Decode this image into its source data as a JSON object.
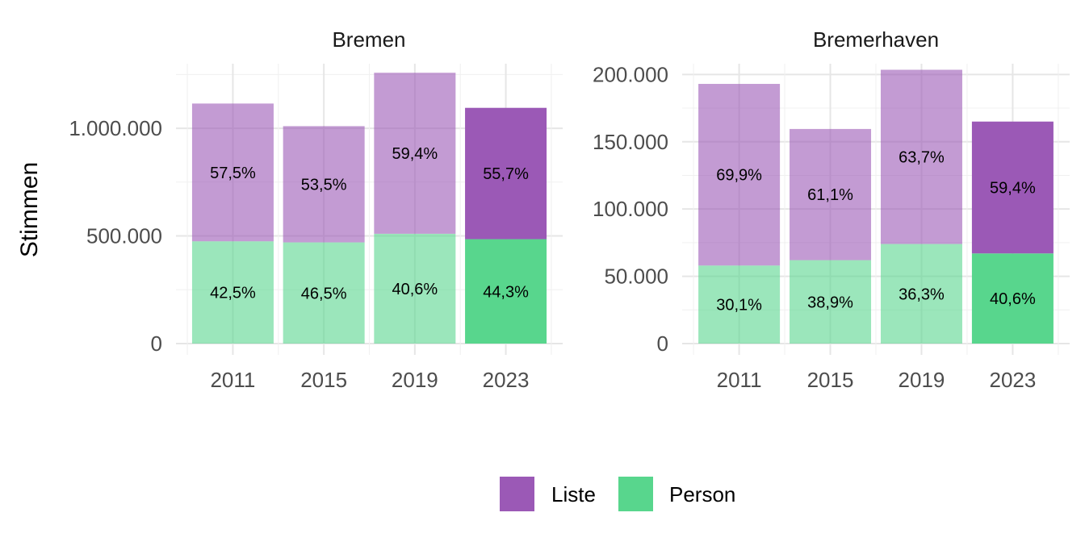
{
  "chart_data": {
    "type": "bar",
    "stacked": true,
    "ylabel": "Stimmen",
    "xlabel": "",
    "grid": true,
    "legend_position": "bottom",
    "categories": [
      "2011",
      "2015",
      "2019",
      "2023"
    ],
    "highlight_category": "2023",
    "legend": [
      {
        "name": "Liste",
        "color": "#9B59B6"
      },
      {
        "name": "Person",
        "color": "#58D68D"
      }
    ],
    "panels": [
      {
        "title": "Bremen",
        "ylim": [
          0,
          1300000
        ],
        "yticks": [
          0,
          500000,
          1000000
        ],
        "ytick_labels": [
          "0",
          "500.000",
          "1.000.000"
        ],
        "series": [
          {
            "name": "Person",
            "values": [
              475000,
              470000,
              510000,
              485000
            ],
            "labels": [
              "42,5%",
              "46,5%",
              "40,6%",
              "44,3%"
            ]
          },
          {
            "name": "Liste",
            "values": [
              640000,
              540000,
              748000,
              610000
            ],
            "labels": [
              "57,5%",
              "53,5%",
              "59,4%",
              "55,7%"
            ]
          }
        ]
      },
      {
        "title": "Bremerhaven",
        "ylim": [
          0,
          208000
        ],
        "yticks": [
          0,
          50000,
          100000,
          150000,
          200000
        ],
        "ytick_labels": [
          "0",
          "50.000",
          "100.000",
          "150.000",
          "200.000"
        ],
        "series": [
          {
            "name": "Person",
            "values": [
              58000,
              62000,
              74000,
              67000
            ],
            "labels": [
              "30,1%",
              "38,9%",
              "36,3%",
              "40,6%"
            ]
          },
          {
            "name": "Liste",
            "values": [
              135000,
              97500,
              129500,
              98000
            ],
            "labels": [
              "69,9%",
              "61,1%",
              "63,7%",
              "59,4%"
            ]
          }
        ]
      }
    ]
  }
}
